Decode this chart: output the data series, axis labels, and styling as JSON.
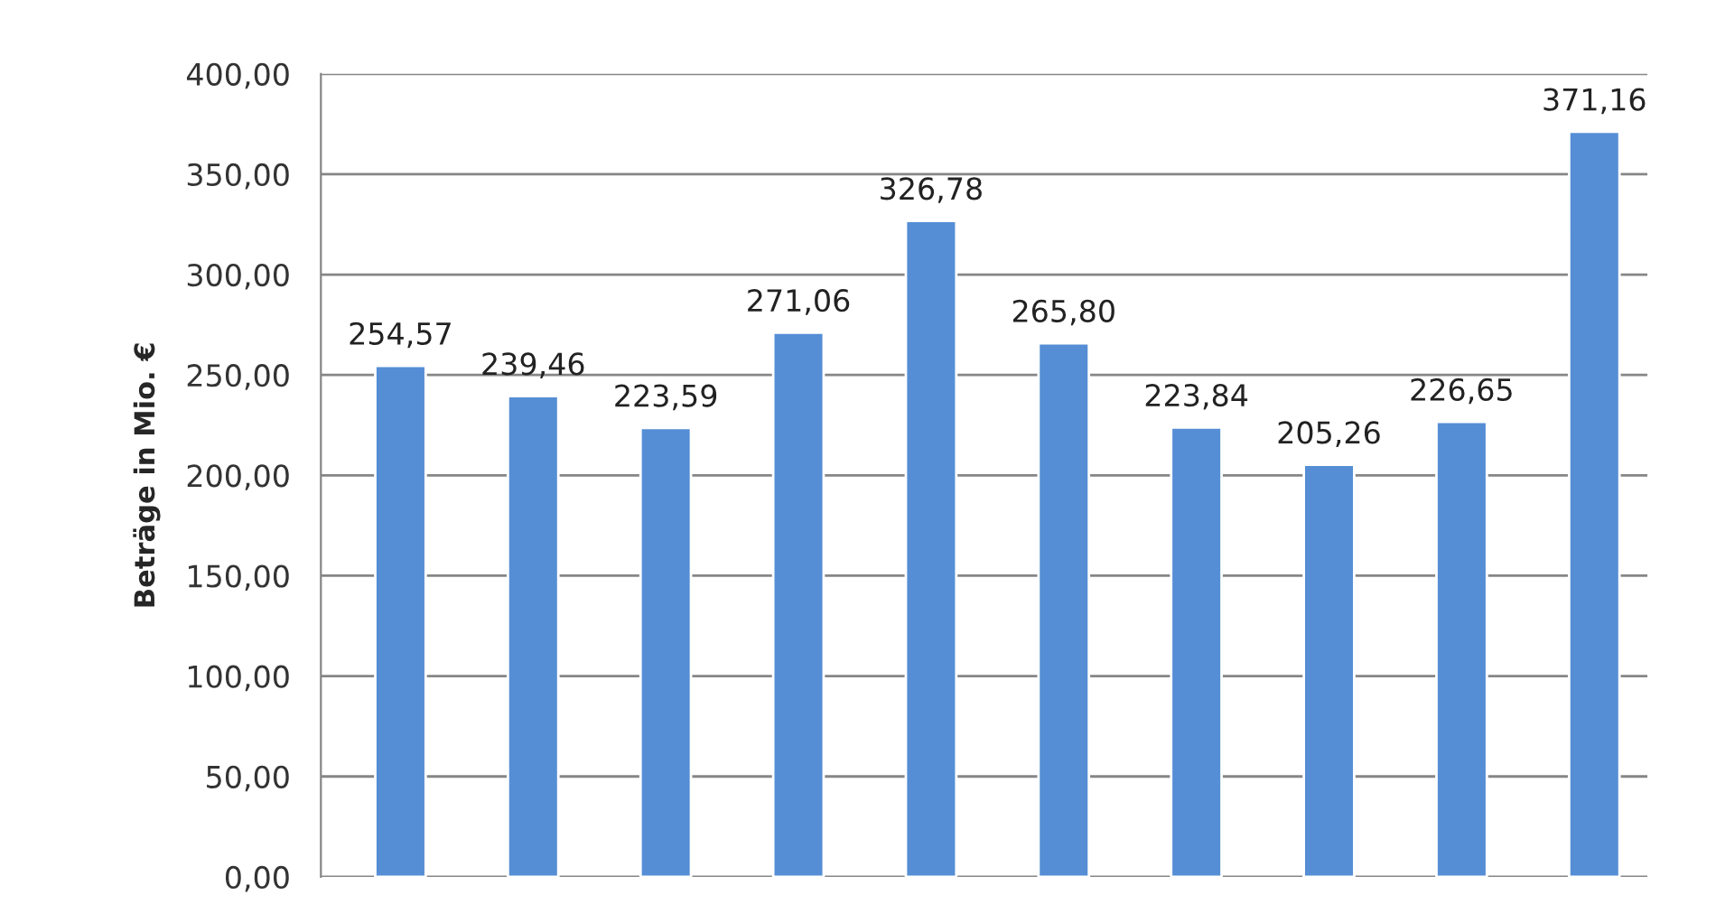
{
  "chart_data": {
    "type": "bar",
    "ylabel": "Beträge in Mio. €",
    "categories": [
      null,
      null,
      null,
      null,
      null,
      null,
      null,
      null,
      null,
      null
    ],
    "values": [
      254.57,
      239.46,
      223.59,
      271.06,
      326.78,
      265.8,
      223.84,
      205.26,
      226.65,
      371.16
    ],
    "value_labels": [
      "254,57",
      "239,46",
      "223,59",
      "271,06",
      "326,78",
      "265,80",
      "223,84",
      "205,26",
      "226,65",
      "371,16"
    ],
    "color": "#558ed5",
    "ylim": [
      0,
      400
    ],
    "yticks": [
      {
        "value": 0,
        "label": "0,00"
      },
      {
        "value": 50,
        "label": "50,00"
      },
      {
        "value": 100,
        "label": "100,00"
      },
      {
        "value": 150,
        "label": "150,00"
      },
      {
        "value": 200,
        "label": "200,00"
      },
      {
        "value": 250,
        "label": "250,00"
      },
      {
        "value": 300,
        "label": "300,00"
      },
      {
        "value": 350,
        "label": "350,00"
      },
      {
        "value": 400,
        "label": "400,00"
      }
    ],
    "grid": "y",
    "tick_labels": "y",
    "legend": false
  }
}
